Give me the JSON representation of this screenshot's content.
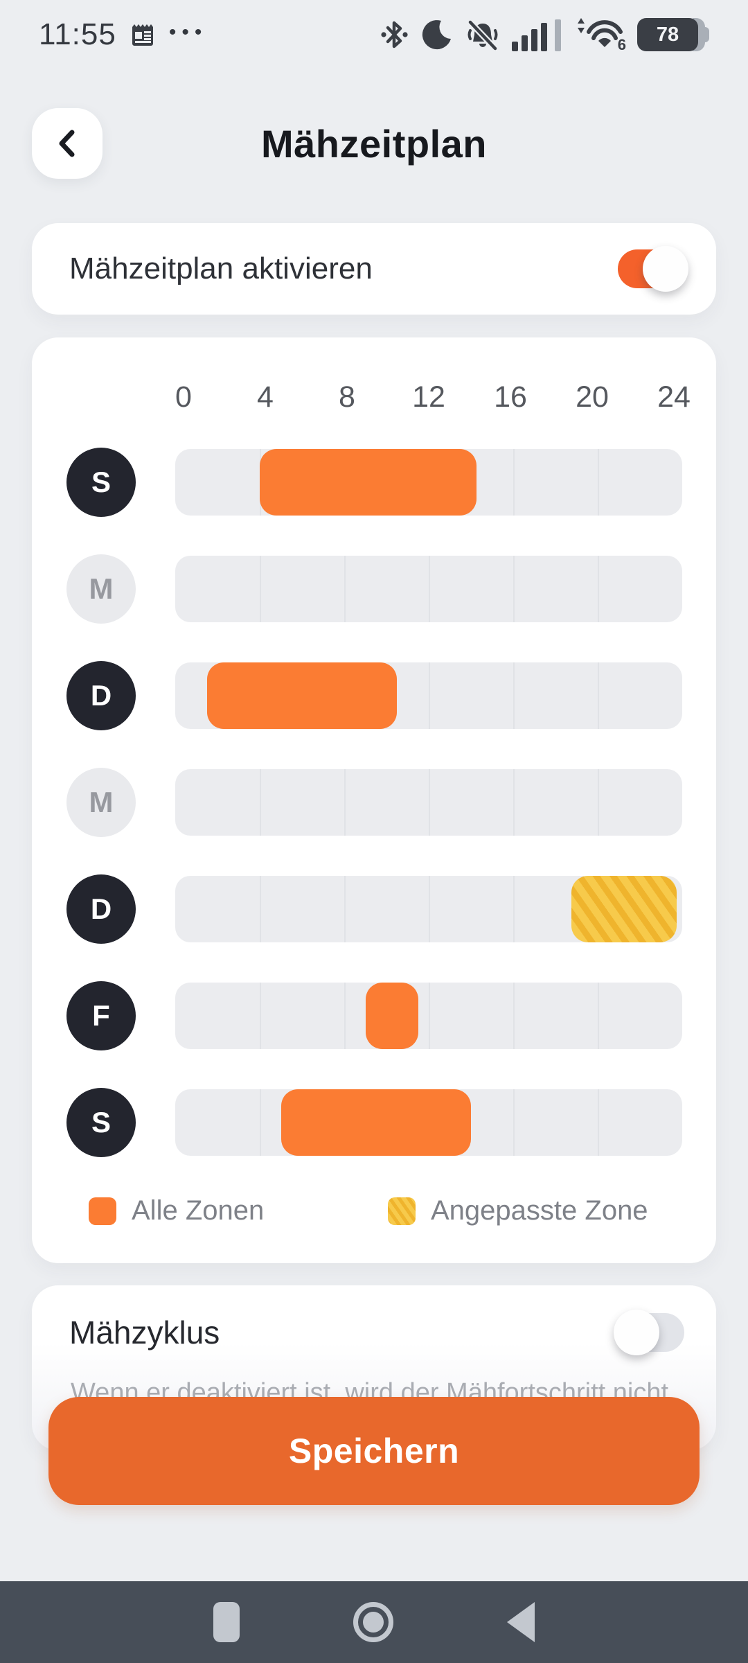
{
  "status_bar": {
    "time": "11:55",
    "left_icons": [
      "calendar-icon",
      "more-notifications-ellipsis-icon"
    ],
    "right_icons": [
      "bluetooth-icon",
      "do-not-disturb-moon-icon",
      "notifications-off-bell-icon",
      "signal-strength-icon",
      "wifi-icon",
      "battery-icon"
    ],
    "wifi_label": "6",
    "battery_percent": "78"
  },
  "header": {
    "title": "Mähzeitplan"
  },
  "activation_card": {
    "label": "Mähzeitplan aktivieren",
    "toggle_on": true
  },
  "schedule_card": {
    "axis_ticks": [
      "0",
      "4",
      "8",
      "12",
      "16",
      "20",
      "24"
    ],
    "axis_range_hours": [
      0,
      24
    ],
    "rows": [
      {
        "day": "S",
        "active": true,
        "bars": [
          {
            "start": 4,
            "end": 14.25,
            "zone": "all"
          }
        ]
      },
      {
        "day": "M",
        "active": false,
        "bars": []
      },
      {
        "day": "D",
        "active": true,
        "bars": [
          {
            "start": 1.5,
            "end": 10.5,
            "zone": "all"
          }
        ]
      },
      {
        "day": "M",
        "active": false,
        "bars": []
      },
      {
        "day": "D",
        "active": true,
        "bars": [
          {
            "start": 18.75,
            "end": 23.75,
            "zone": "custom"
          }
        ]
      },
      {
        "day": "F",
        "active": true,
        "bars": [
          {
            "start": 9,
            "end": 11.5,
            "zone": "all"
          }
        ]
      },
      {
        "day": "S",
        "active": true,
        "bars": [
          {
            "start": 5,
            "end": 14,
            "zone": "all"
          }
        ]
      }
    ],
    "legend": [
      {
        "label": "Alle Zonen",
        "zone": "all"
      },
      {
        "label": "Angepasste Zone",
        "zone": "custom"
      }
    ]
  },
  "cycle_card": {
    "label": "Mähzyklus",
    "toggle_on": false,
    "helper_text_partial": "Wenn er deaktiviert ist, wird der Mähfortschritt nicht"
  },
  "save_button": {
    "label": "Speichern"
  },
  "nav_bar": {
    "icons": [
      "recents-square-icon",
      "home-circle-icon",
      "back-triangle-icon"
    ]
  },
  "colors": {
    "accent_orange": "#F4612B",
    "bar_orange": "#FB7C33",
    "button_orange": "#E8682C",
    "zone_yellow": "#F7CA4B",
    "zone_yellow_stripe": "#EFB42D",
    "day_active_bg": "#23252E",
    "day_inactive_bg": "#E9EAED",
    "track_gray": "#EBECEF",
    "nav_bar_bg": "#474E58"
  }
}
